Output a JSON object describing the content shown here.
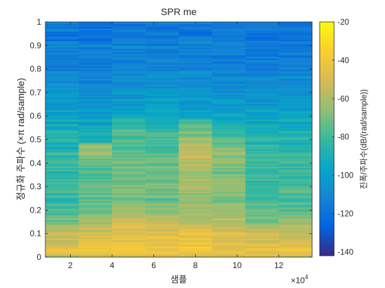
{
  "chart_data": {
    "type": "heatmap",
    "title": "SPR me",
    "xlabel": "샘플",
    "ylabel": "정규화 주파수 (×π rad/sample)",
    "x_exponent_label": "×10",
    "x_exponent_power": "4",
    "colorbar_label": "진폭/주파수(dB/(rad/sample))",
    "xlim": [
      8000,
      136000
    ],
    "ylim": [
      0,
      1
    ],
    "x_ticks": [
      20000,
      40000,
      60000,
      80000,
      100000,
      120000
    ],
    "x_tick_labels": [
      "2",
      "4",
      "6",
      "8",
      "10",
      "12"
    ],
    "y_ticks": [
      0,
      0.1,
      0.2,
      0.3,
      0.4,
      0.5,
      0.6,
      0.7,
      0.8,
      0.9,
      1
    ],
    "y_tick_labels": [
      "0",
      "0.1",
      "0.2",
      "0.3",
      "0.4",
      "0.5",
      "0.6",
      "0.7",
      "0.8",
      "0.9",
      "1"
    ],
    "color_limits": [
      -142,
      -20
    ],
    "colorbar_ticks": [
      -20,
      -40,
      -60,
      -80,
      -100,
      -120,
      -140
    ],
    "colorbar_tick_labels": [
      "-20",
      "-40",
      "-60",
      "-80",
      "-100",
      "-120",
      "-140"
    ],
    "colormap": "parula",
    "grid": false,
    "time_segments": [
      16000,
      32000,
      48000,
      64000,
      80000,
      96000,
      112000,
      128000
    ],
    "frequency_profiles": [
      {
        "f": [
          0,
          0.03,
          0.08,
          0.12,
          0.16,
          0.2,
          0.3,
          0.4,
          0.5,
          0.6,
          0.7,
          0.8,
          0.9,
          1.0
        ],
        "db": [
          -55,
          -46,
          -52,
          -62,
          -70,
          -78,
          -82,
          -84,
          -88,
          -96,
          -104,
          -110,
          -114,
          -118
        ]
      },
      {
        "f": [
          0,
          0.03,
          0.08,
          0.12,
          0.16,
          0.2,
          0.3,
          0.4,
          0.47,
          0.5,
          0.6,
          0.7,
          0.8,
          0.9,
          1.0
        ],
        "db": [
          -52,
          -44,
          -48,
          -54,
          -62,
          -70,
          -74,
          -76,
          -62,
          -92,
          -100,
          -108,
          -112,
          -116,
          -120
        ]
      },
      {
        "f": [
          0,
          0.03,
          0.08,
          0.12,
          0.16,
          0.2,
          0.3,
          0.4,
          0.5,
          0.56,
          0.6,
          0.7,
          0.8,
          0.9,
          1.0
        ],
        "db": [
          -50,
          -42,
          -45,
          -48,
          -52,
          -64,
          -70,
          -72,
          -76,
          -80,
          -94,
          -104,
          -110,
          -114,
          -118
        ]
      },
      {
        "f": [
          0,
          0.03,
          0.08,
          0.12,
          0.16,
          0.2,
          0.3,
          0.4,
          0.5,
          0.6,
          0.7,
          0.8,
          0.9,
          1.0
        ],
        "db": [
          -50,
          -40,
          -46,
          -52,
          -60,
          -68,
          -72,
          -74,
          -78,
          -94,
          -104,
          -110,
          -114,
          -118
        ]
      },
      {
        "f": [
          0,
          0.03,
          0.08,
          0.12,
          0.16,
          0.2,
          0.3,
          0.4,
          0.46,
          0.5,
          0.56,
          0.6,
          0.7,
          0.8,
          0.9,
          1.0
        ],
        "db": [
          -48,
          -40,
          -44,
          -50,
          -56,
          -64,
          -64,
          -60,
          -52,
          -64,
          -78,
          -94,
          -104,
          -110,
          -114,
          -118
        ]
      },
      {
        "f": [
          0,
          0.03,
          0.08,
          0.12,
          0.16,
          0.2,
          0.3,
          0.4,
          0.46,
          0.5,
          0.6,
          0.7,
          0.8,
          0.9,
          1.0
        ],
        "db": [
          -50,
          -42,
          -46,
          -52,
          -58,
          -66,
          -70,
          -70,
          -64,
          -80,
          -96,
          -106,
          -112,
          -116,
          -120
        ]
      },
      {
        "f": [
          0,
          0.03,
          0.08,
          0.12,
          0.16,
          0.2,
          0.3,
          0.4,
          0.5,
          0.6,
          0.7,
          0.8,
          0.9,
          1.0
        ],
        "db": [
          -52,
          -46,
          -52,
          -60,
          -68,
          -74,
          -80,
          -82,
          -86,
          -98,
          -106,
          -112,
          -116,
          -120
        ]
      },
      {
        "f": [
          0,
          0.03,
          0.08,
          0.12,
          0.16,
          0.2,
          0.3,
          0.4,
          0.5,
          0.6,
          0.7,
          0.8,
          0.9,
          1.0
        ],
        "db": [
          -54,
          -46,
          -52,
          -58,
          -66,
          -74,
          -80,
          -82,
          -86,
          -98,
          -106,
          -112,
          -116,
          -120
        ]
      }
    ]
  }
}
